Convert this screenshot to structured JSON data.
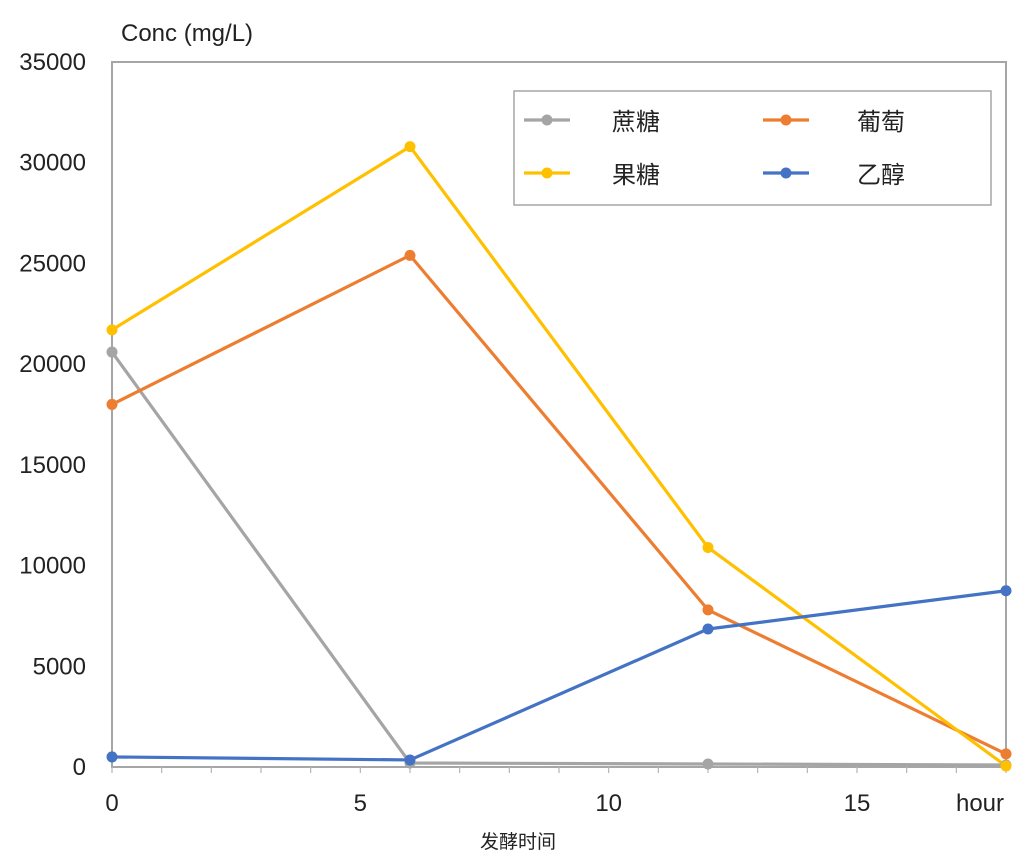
{
  "chart_data": {
    "type": "line",
    "title": "",
    "ylabel": "Conc (mg/L)",
    "xunit": "hour",
    "xlabel": "发酵时间",
    "xlim": [
      0,
      18
    ],
    "ylim": [
      0,
      35000
    ],
    "x": [
      0,
      6,
      12,
      18
    ],
    "xticks": [
      0,
      5,
      10,
      15
    ],
    "yticks": [
      0,
      5000,
      10000,
      15000,
      20000,
      25000,
      30000,
      35000
    ],
    "grid": false,
    "legend_position": "top-right",
    "series": [
      {
        "name": "蔗糖",
        "color": "#a5a5a5",
        "values": [
          20600,
          200,
          150,
          100
        ]
      },
      {
        "name": "葡萄",
        "color": "#ed7d31",
        "values": [
          18000,
          25400,
          7800,
          650
        ]
      },
      {
        "name": "果糖",
        "color": "#ffc000",
        "values": [
          21700,
          30800,
          10900,
          50
        ]
      },
      {
        "name": "乙醇",
        "color": "#4472c4",
        "values": [
          500,
          350,
          6850,
          8750
        ]
      }
    ]
  }
}
